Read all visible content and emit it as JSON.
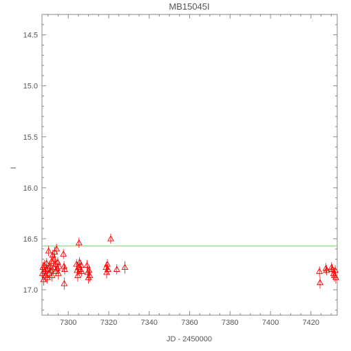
{
  "chart_data": {
    "type": "scatter",
    "title": "MB15045I",
    "xlabel": "JD - 2450000",
    "ylabel": "I",
    "xlim": [
      7287,
      7433
    ],
    "ylim": [
      17.25,
      14.3
    ],
    "y_inverted": true,
    "x_ticks": [
      7300,
      7320,
      7340,
      7360,
      7380,
      7400,
      7420
    ],
    "y_ticks": [
      14.5,
      15.0,
      15.5,
      16.0,
      16.5,
      17.0
    ],
    "y_tick_labels": [
      "14.5",
      "15.0",
      "15.5",
      "16.0",
      "16.5",
      "17.0"
    ],
    "grid": false,
    "reference_line": {
      "y": 16.57,
      "color": "#66dd66"
    },
    "marker": "triangle-open",
    "marker_color": "#ff0000",
    "points": [
      {
        "x": 7287.2,
        "y": 16.84,
        "err": 0.06
      },
      {
        "x": 7287.5,
        "y": 16.78,
        "err": 0.05
      },
      {
        "x": 7287.8,
        "y": 16.9,
        "err": 0.06
      },
      {
        "x": 7288.1,
        "y": 16.76,
        "err": 0.05
      },
      {
        "x": 7288.4,
        "y": 16.82,
        "err": 0.05
      },
      {
        "x": 7288.7,
        "y": 16.86,
        "err": 0.06
      },
      {
        "x": 7289.0,
        "y": 16.8,
        "err": 0.05
      },
      {
        "x": 7289.3,
        "y": 16.74,
        "err": 0.05
      },
      {
        "x": 7289.6,
        "y": 16.88,
        "err": 0.06
      },
      {
        "x": 7290.0,
        "y": 16.79,
        "err": 0.05
      },
      {
        "x": 7290.3,
        "y": 16.62,
        "err": 0.05
      },
      {
        "x": 7290.6,
        "y": 16.84,
        "err": 0.05
      },
      {
        "x": 7291.0,
        "y": 16.77,
        "err": 0.05
      },
      {
        "x": 7291.3,
        "y": 16.81,
        "err": 0.05
      },
      {
        "x": 7291.7,
        "y": 16.72,
        "err": 0.05
      },
      {
        "x": 7292.0,
        "y": 16.86,
        "err": 0.06
      },
      {
        "x": 7292.3,
        "y": 16.66,
        "err": 0.05
      },
      {
        "x": 7292.7,
        "y": 16.78,
        "err": 0.05
      },
      {
        "x": 7293.0,
        "y": 16.7,
        "err": 0.05
      },
      {
        "x": 7293.3,
        "y": 16.63,
        "err": 0.05
      },
      {
        "x": 7293.6,
        "y": 16.75,
        "err": 0.05
      },
      {
        "x": 7293.9,
        "y": 16.82,
        "err": 0.05
      },
      {
        "x": 7294.2,
        "y": 16.6,
        "err": 0.05
      },
      {
        "x": 7294.5,
        "y": 16.79,
        "err": 0.05
      },
      {
        "x": 7294.8,
        "y": 16.73,
        "err": 0.05
      },
      {
        "x": 7295.1,
        "y": 16.84,
        "err": 0.06
      },
      {
        "x": 7295.4,
        "y": 16.77,
        "err": 0.05
      },
      {
        "x": 7297.6,
        "y": 16.65,
        "err": 0.05
      },
      {
        "x": 7297.9,
        "y": 16.77,
        "err": 0.05
      },
      {
        "x": 7298.2,
        "y": 16.8,
        "err": 0.05
      },
      {
        "x": 7298.0,
        "y": 16.94,
        "err": 0.06
      },
      {
        "x": 7304.1,
        "y": 16.75,
        "err": 0.05
      },
      {
        "x": 7304.4,
        "y": 16.81,
        "err": 0.05
      },
      {
        "x": 7304.7,
        "y": 16.86,
        "err": 0.06
      },
      {
        "x": 7305.0,
        "y": 16.78,
        "err": 0.05
      },
      {
        "x": 7305.3,
        "y": 16.54,
        "err": 0.05
      },
      {
        "x": 7305.6,
        "y": 16.73,
        "err": 0.05
      },
      {
        "x": 7306.0,
        "y": 16.8,
        "err": 0.05
      },
      {
        "x": 7306.3,
        "y": 16.76,
        "err": 0.05
      },
      {
        "x": 7306.6,
        "y": 16.82,
        "err": 0.05
      },
      {
        "x": 7309.3,
        "y": 16.76,
        "err": 0.05
      },
      {
        "x": 7309.6,
        "y": 16.83,
        "err": 0.06
      },
      {
        "x": 7310.0,
        "y": 16.88,
        "err": 0.06
      },
      {
        "x": 7310.3,
        "y": 16.81,
        "err": 0.05
      },
      {
        "x": 7310.6,
        "y": 16.86,
        "err": 0.06
      },
      {
        "x": 7318.7,
        "y": 16.78,
        "err": 0.05
      },
      {
        "x": 7319.0,
        "y": 16.83,
        "err": 0.06
      },
      {
        "x": 7319.3,
        "y": 16.75,
        "err": 0.05
      },
      {
        "x": 7319.6,
        "y": 16.8,
        "err": 0.05
      },
      {
        "x": 7321.0,
        "y": 16.5,
        "err": 0.05
      },
      {
        "x": 7324.0,
        "y": 16.8,
        "err": 0.05
      },
      {
        "x": 7328.0,
        "y": 16.78,
        "err": 0.06
      },
      {
        "x": 7424.2,
        "y": 16.82,
        "err": 0.05
      },
      {
        "x": 7424.5,
        "y": 16.93,
        "err": 0.06
      },
      {
        "x": 7427.4,
        "y": 16.79,
        "err": 0.05
      },
      {
        "x": 7427.7,
        "y": 16.81,
        "err": 0.05
      },
      {
        "x": 7430.2,
        "y": 16.78,
        "err": 0.05
      },
      {
        "x": 7430.5,
        "y": 16.8,
        "err": 0.05
      },
      {
        "x": 7431.2,
        "y": 16.84,
        "err": 0.05
      },
      {
        "x": 7431.6,
        "y": 16.86,
        "err": 0.06
      },
      {
        "x": 7432.0,
        "y": 16.81,
        "err": 0.05
      },
      {
        "x": 7432.3,
        "y": 16.88,
        "err": 0.06
      }
    ]
  }
}
